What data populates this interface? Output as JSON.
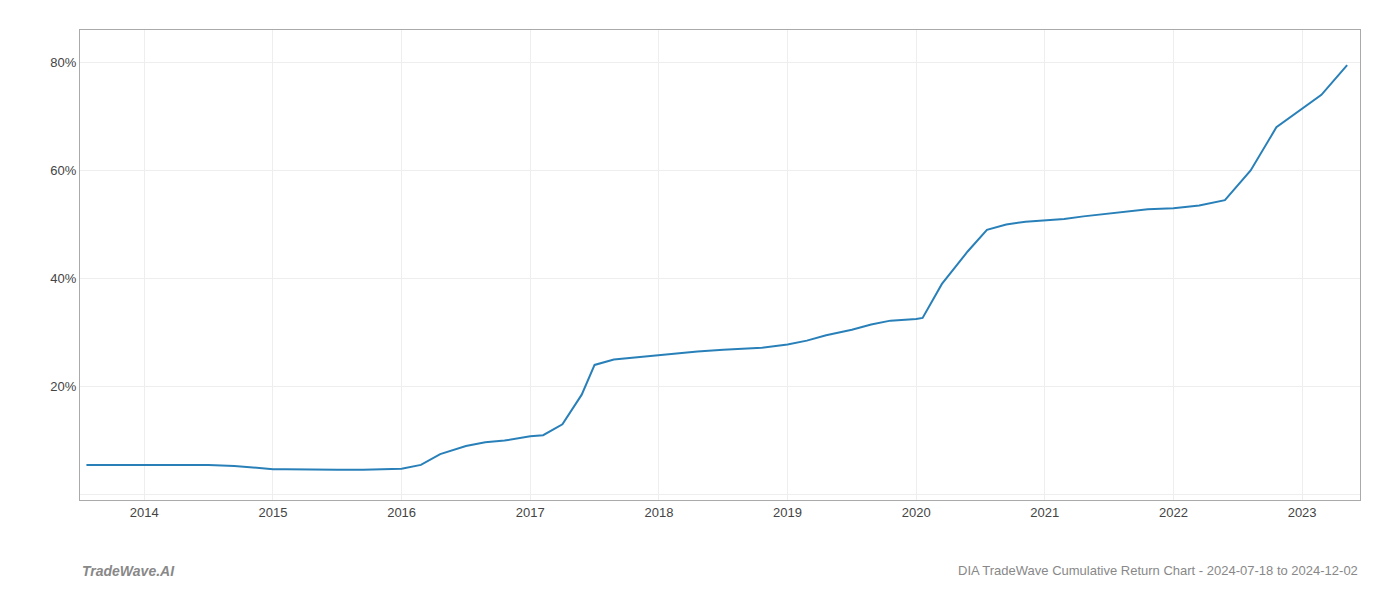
{
  "chart_data": {
    "type": "line",
    "x": [
      2013.55,
      2013.65,
      2013.8,
      2014.0,
      2014.2,
      2014.5,
      2014.7,
      2014.85,
      2015.0,
      2015.1,
      2015.3,
      2015.5,
      2015.7,
      2015.85,
      2016.0,
      2016.15,
      2016.3,
      2016.5,
      2016.65,
      2016.8,
      2017.0,
      2017.1,
      2017.25,
      2017.4,
      2017.5,
      2017.65,
      2017.85,
      2018.0,
      2018.15,
      2018.3,
      2018.5,
      2018.65,
      2018.8,
      2019.0,
      2019.15,
      2019.3,
      2019.5,
      2019.65,
      2019.8,
      2020.0,
      2020.05,
      2020.2,
      2020.4,
      2020.55,
      2020.7,
      2020.85,
      2021.0,
      2021.15,
      2021.3,
      2021.5,
      2021.65,
      2021.8,
      2022.0,
      2022.2,
      2022.4,
      2022.6,
      2022.8,
      2023.0,
      2023.15,
      2023.35
    ],
    "values": [
      0.055,
      0.055,
      0.055,
      0.055,
      0.056,
      0.055,
      0.053,
      0.05,
      0.047,
      0.047,
      0.046,
      0.046,
      0.046,
      0.047,
      0.048,
      0.055,
      0.075,
      0.09,
      0.097,
      0.1,
      0.108,
      0.11,
      0.13,
      0.185,
      0.24,
      0.25,
      0.255,
      0.258,
      0.262,
      0.265,
      0.268,
      0.27,
      0.272,
      0.278,
      0.285,
      0.295,
      0.305,
      0.315,
      0.322,
      0.325,
      0.327,
      0.39,
      0.45,
      0.49,
      0.5,
      0.505,
      0.508,
      0.51,
      0.515,
      0.52,
      0.525,
      0.528,
      0.53,
      0.535,
      0.545,
      0.6,
      0.68,
      0.715,
      0.74,
      0.795
    ],
    "color": "#2980b9",
    "xlim": [
      2013.5,
      2023.45
    ],
    "ylim": [
      -0.01,
      0.86
    ],
    "xticks": [
      2014,
      2015,
      2016,
      2017,
      2018,
      2019,
      2020,
      2021,
      2022,
      2023
    ],
    "yticks": [
      {
        "value": 0.0,
        "label": null
      },
      {
        "value": 0.2,
        "label": "20%"
      },
      {
        "value": 0.4,
        "label": "40%"
      },
      {
        "value": 0.6,
        "label": "60%"
      },
      {
        "value": 0.8,
        "label": "80%"
      }
    ],
    "grid": true,
    "annotations": [
      "TradeWave.AI",
      "DIA TradeWave Cumulative Return Chart - 2024-07-18 to 2024-12-02"
    ]
  }
}
